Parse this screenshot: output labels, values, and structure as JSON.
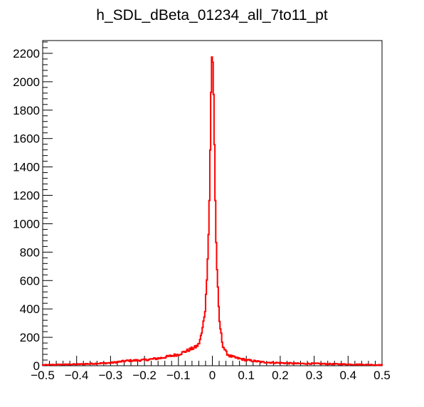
{
  "chart_data": {
    "type": "line",
    "title": "h_SDL_dBeta_01234_all_7to11_pt",
    "xlabel": "",
    "ylabel": "",
    "xlim": [
      -0.5,
      0.5
    ],
    "ylim": [
      0,
      2290
    ],
    "grid": false,
    "legend": "none",
    "line_color": "#ff0000",
    "axis_color": "#000000",
    "x_ticks": [
      {
        "value": -0.5,
        "label": "−0.5"
      },
      {
        "value": -0.4,
        "label": "−0.4"
      },
      {
        "value": -0.3,
        "label": "−0.3"
      },
      {
        "value": -0.2,
        "label": "−0.2"
      },
      {
        "value": -0.1,
        "label": "−0.1"
      },
      {
        "value": 0,
        "label": "0"
      },
      {
        "value": 0.1,
        "label": "0.1"
      },
      {
        "value": 0.2,
        "label": "0.2"
      },
      {
        "value": 0.3,
        "label": "0.3"
      },
      {
        "value": 0.4,
        "label": "0.4"
      },
      {
        "value": 0.5,
        "label": "0.5"
      }
    ],
    "y_ticks": [
      {
        "value": 0,
        "label": "0"
      },
      {
        "value": 200,
        "label": "200"
      },
      {
        "value": 400,
        "label": "400"
      },
      {
        "value": 600,
        "label": "600"
      },
      {
        "value": 800,
        "label": "800"
      },
      {
        "value": 1000,
        "label": "1000"
      },
      {
        "value": 1200,
        "label": "1200"
      },
      {
        "value": 1400,
        "label": "1400"
      },
      {
        "value": 1600,
        "label": "1600"
      },
      {
        "value": 1800,
        "label": "1800"
      },
      {
        "value": 2000,
        "label": "2000"
      },
      {
        "value": 2200,
        "label": "2200"
      }
    ],
    "series": [
      {
        "x": [
          -0.5,
          -0.45,
          -0.4,
          -0.35,
          -0.3,
          -0.25,
          -0.2,
          -0.15,
          -0.1,
          -0.07,
          -0.05,
          -0.04,
          -0.03,
          -0.02,
          -0.015,
          -0.01,
          -0.007,
          -0.005,
          -0.003,
          -0.002,
          0.0,
          0.002,
          0.004,
          0.006,
          0.008,
          0.01,
          0.015,
          0.02,
          0.03,
          0.04,
          0.05,
          0.07,
          0.1,
          0.15,
          0.2,
          0.25,
          0.3,
          0.35,
          0.4,
          0.45,
          0.5
        ],
        "y": [
          5,
          8,
          10,
          15,
          20,
          35,
          40,
          55,
          80,
          110,
          130,
          150,
          240,
          420,
          700,
          1000,
          1400,
          1750,
          2000,
          2150,
          2180,
          2100,
          1900,
          1600,
          1300,
          950,
          600,
          330,
          150,
          95,
          70,
          55,
          40,
          25,
          20,
          15,
          15,
          12,
          10,
          8,
          5
        ]
      }
    ]
  }
}
